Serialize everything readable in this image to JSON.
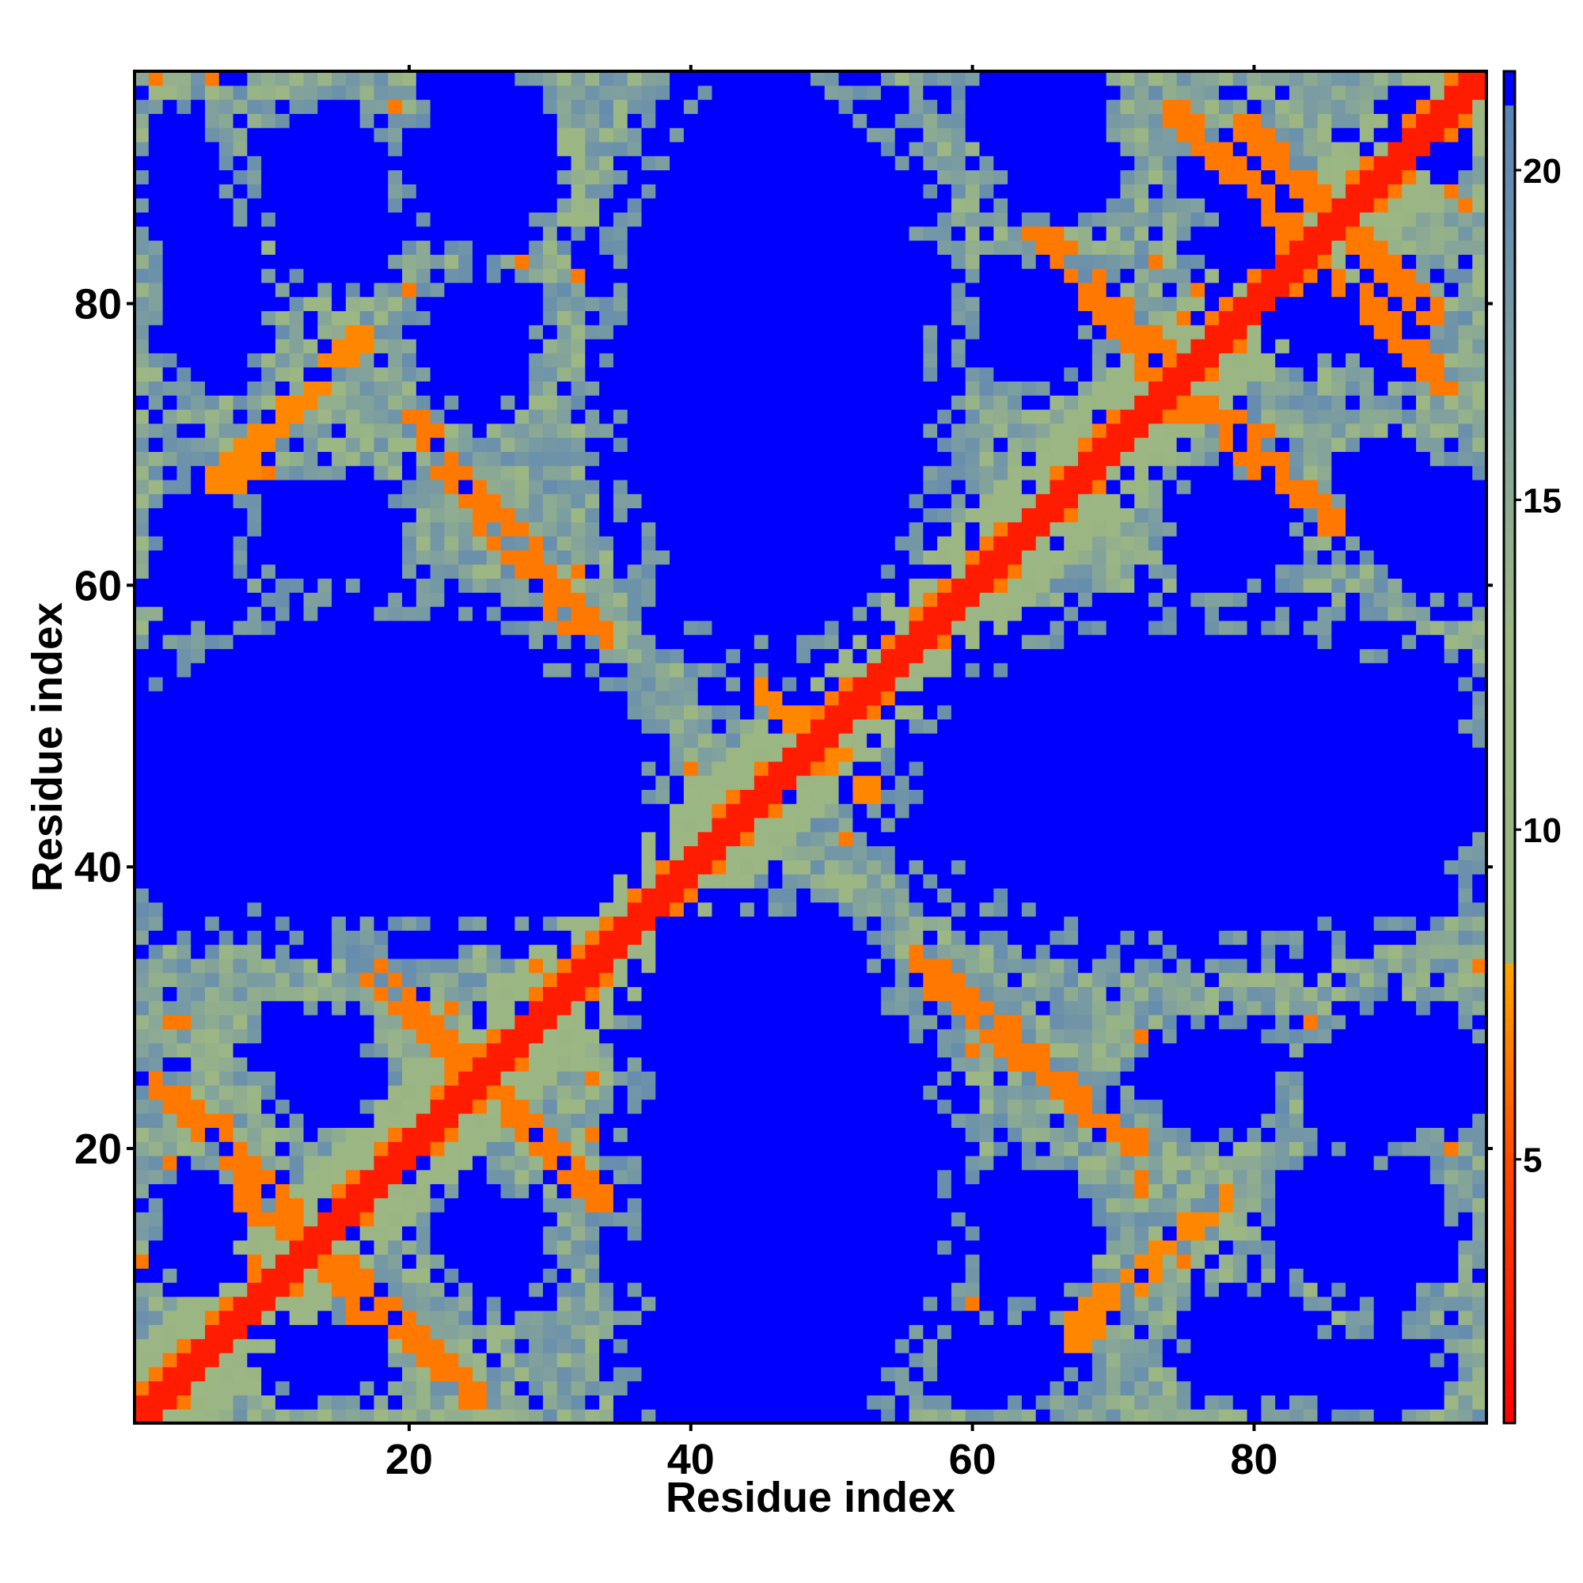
{
  "chart_data": {
    "type": "heatmap",
    "title": "",
    "xlabel": "Residue index",
    "ylabel": "Residue index",
    "n_residues": 96,
    "xlim": [
      0.5,
      96.5
    ],
    "ylim": [
      0.5,
      96.5
    ],
    "x_ticks": [
      20,
      40,
      60,
      80
    ],
    "y_ticks": [
      20,
      40,
      60,
      80
    ],
    "colorbar": {
      "ticks": [
        5,
        10,
        15,
        20
      ],
      "range": [
        1,
        21.5
      ],
      "cap_value": 21.5,
      "color_stops": [
        {
          "value": 1.0,
          "color": "#ff0000"
        },
        {
          "value": 5.0,
          "color": "#ff4a00"
        },
        {
          "value": 8.0,
          "color": "#ffa500"
        },
        {
          "value": 8.01,
          "color": "#98b482"
        },
        {
          "value": 13.0,
          "color": "#9cb784"
        },
        {
          "value": 17.0,
          "color": "#7d9ea0"
        },
        {
          "value": 21.0,
          "color": "#5983b6"
        },
        {
          "value": 21.01,
          "color": "#0000ff"
        },
        {
          "value": 21.5,
          "color": "#0000ff"
        }
      ]
    },
    "model": {
      "description_of_encoding": "distance map between residue pairs (i,j)",
      "diagonal_value": 2.5,
      "helix_bands": [
        {
          "i": [
            1,
            37
          ],
          "j": [
            37,
            1
          ]
        },
        {
          "i": [
            37,
            58
          ],
          "j": [
            58,
            37
          ]
        },
        {
          "i": [
            61,
            96
          ],
          "j": [
            96,
            61
          ]
        }
      ],
      "contact_ridges": [
        {
          "x1": 3,
          "y1": 24,
          "x2": 17,
          "y2": 8,
          "value": 6.5
        },
        {
          "x1": 15,
          "y1": 12,
          "x2": 25,
          "y2": 2,
          "value": 6.5
        },
        {
          "x1": 16,
          "y1": 34,
          "x2": 34,
          "y2": 16,
          "value": 6.5
        },
        {
          "x1": 6,
          "y1": 67,
          "x2": 12,
          "y2": 73,
          "value": 7.0
        },
        {
          "x1": 20,
          "y1": 72,
          "x2": 34,
          "y2": 56,
          "value": 6.5
        },
        {
          "x1": 57,
          "y1": 32,
          "x2": 69,
          "y2": 22,
          "value": 6.5
        },
        {
          "x1": 67,
          "y1": 7,
          "x2": 78,
          "y2": 17,
          "value": 7.0
        },
        {
          "x1": 64,
          "y1": 86,
          "x2": 76,
          "y2": 72,
          "value": 6.5
        },
        {
          "x1": 77,
          "y1": 91,
          "x2": 94,
          "y2": 74,
          "value": 6.5
        },
        {
          "x1": 76,
          "y1": 74,
          "x2": 86,
          "y2": 64,
          "value": 6.5
        },
        {
          "x1": 86,
          "y1": 86,
          "x2": 93,
          "y2": 79,
          "value": 6.5
        },
        {
          "x1": 45,
          "y1": 53,
          "x2": 53,
          "y2": 45,
          "value": 7.0
        }
      ],
      "void_regions": [
        {
          "cx": 46,
          "cy": 76,
          "rx": 11,
          "ry": 20
        },
        {
          "cx": 79,
          "cy": 45,
          "rx": 18,
          "ry": 8
        },
        {
          "cx": 5,
          "cy": 45,
          "rx": 6,
          "ry": 9
        },
        {
          "cx": 29,
          "cy": 45,
          "rx": 8,
          "ry": 9
        },
        {
          "cx": 47,
          "cy": 17,
          "rx": 11,
          "ry": 16
        },
        {
          "cx": 14,
          "cy": 89,
          "rx": 5,
          "ry": 5
        },
        {
          "cx": 25,
          "cy": 89,
          "rx": 5,
          "ry": 5
        },
        {
          "cx": 14,
          "cy": 64,
          "rx": 5,
          "ry": 4
        },
        {
          "cx": 25,
          "cy": 78,
          "rx": 4,
          "ry": 4
        },
        {
          "cx": 14,
          "cy": 25,
          "rx": 4,
          "ry": 3
        },
        {
          "cx": 27,
          "cy": 13,
          "rx": 3,
          "ry": 4
        },
        {
          "cx": 14,
          "cy": 5,
          "rx": 4,
          "ry": 3
        },
        {
          "cx": 6,
          "cy": 80,
          "rx": 4,
          "ry": 5
        },
        {
          "cx": 84,
          "cy": 80,
          "rx": 3,
          "ry": 4
        },
        {
          "cx": 79,
          "cy": 64,
          "rx": 4,
          "ry": 4
        },
        {
          "cx": 79,
          "cy": 89,
          "rx": 4,
          "ry": 3
        },
        {
          "cx": 64,
          "cy": 78,
          "rx": 4,
          "ry": 4
        },
        {
          "cx": 66,
          "cy": 90,
          "rx": 4,
          "ry": 4
        },
        {
          "cx": 76,
          "cy": 25,
          "rx": 4,
          "ry": 3
        },
        {
          "cx": 85,
          "cy": 15,
          "rx": 4,
          "ry": 4
        },
        {
          "cx": 64,
          "cy": 14,
          "rx": 4,
          "ry": 4
        },
        {
          "cx": 93,
          "cy": 25,
          "rx": 4,
          "ry": 4
        },
        {
          "cx": 94,
          "cy": 64,
          "rx": 3,
          "ry": 5
        },
        {
          "cx": 92,
          "cy": 92,
          "rx": 3,
          "ry": 3
        },
        {
          "cx": 62,
          "cy": 5,
          "rx": 5,
          "ry": 3
        },
        {
          "cx": 88,
          "cy": 4,
          "rx": 5,
          "ry": 3
        }
      ],
      "background_value": 16
    }
  }
}
